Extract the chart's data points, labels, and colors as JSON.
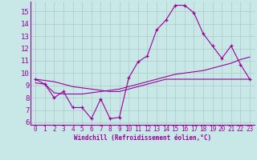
{
  "x": [
    0,
    1,
    2,
    3,
    4,
    5,
    6,
    7,
    8,
    9,
    10,
    11,
    12,
    13,
    14,
    15,
    16,
    17,
    18,
    19,
    20,
    21,
    22,
    23
  ],
  "line1": [
    9.5,
    9.1,
    8.0,
    8.5,
    7.2,
    7.2,
    6.3,
    7.9,
    6.3,
    6.4,
    9.6,
    10.9,
    11.4,
    13.5,
    14.3,
    15.5,
    15.5,
    14.9,
    13.2,
    12.2,
    11.2,
    12.2,
    10.7,
    9.5
  ],
  "line2": [
    9.5,
    9.4,
    9.3,
    9.1,
    8.9,
    8.8,
    8.7,
    8.6,
    8.5,
    8.5,
    8.7,
    8.9,
    9.1,
    9.3,
    9.5,
    9.5,
    9.5,
    9.5,
    9.5,
    9.5,
    9.5,
    9.5,
    9.5,
    9.5
  ],
  "line3": [
    9.2,
    9.1,
    8.4,
    8.3,
    8.3,
    8.3,
    8.4,
    8.5,
    8.6,
    8.7,
    8.9,
    9.1,
    9.3,
    9.5,
    9.7,
    9.9,
    10.0,
    10.1,
    10.2,
    10.4,
    10.6,
    10.8,
    11.1,
    11.3
  ],
  "color": "#990099",
  "bg_color": "#c8e8e8",
  "grid_color": "#b0c8c8",
  "xlabel": "Windchill (Refroidissement éolien,°C)",
  "xlim": [
    -0.5,
    23.5
  ],
  "ylim": [
    5.8,
    15.8
  ],
  "yticks": [
    6,
    7,
    8,
    9,
    10,
    11,
    12,
    13,
    14,
    15
  ],
  "xticks": [
    0,
    1,
    2,
    3,
    4,
    5,
    6,
    7,
    8,
    9,
    10,
    11,
    12,
    13,
    14,
    15,
    16,
    17,
    18,
    19,
    20,
    21,
    22,
    23
  ]
}
